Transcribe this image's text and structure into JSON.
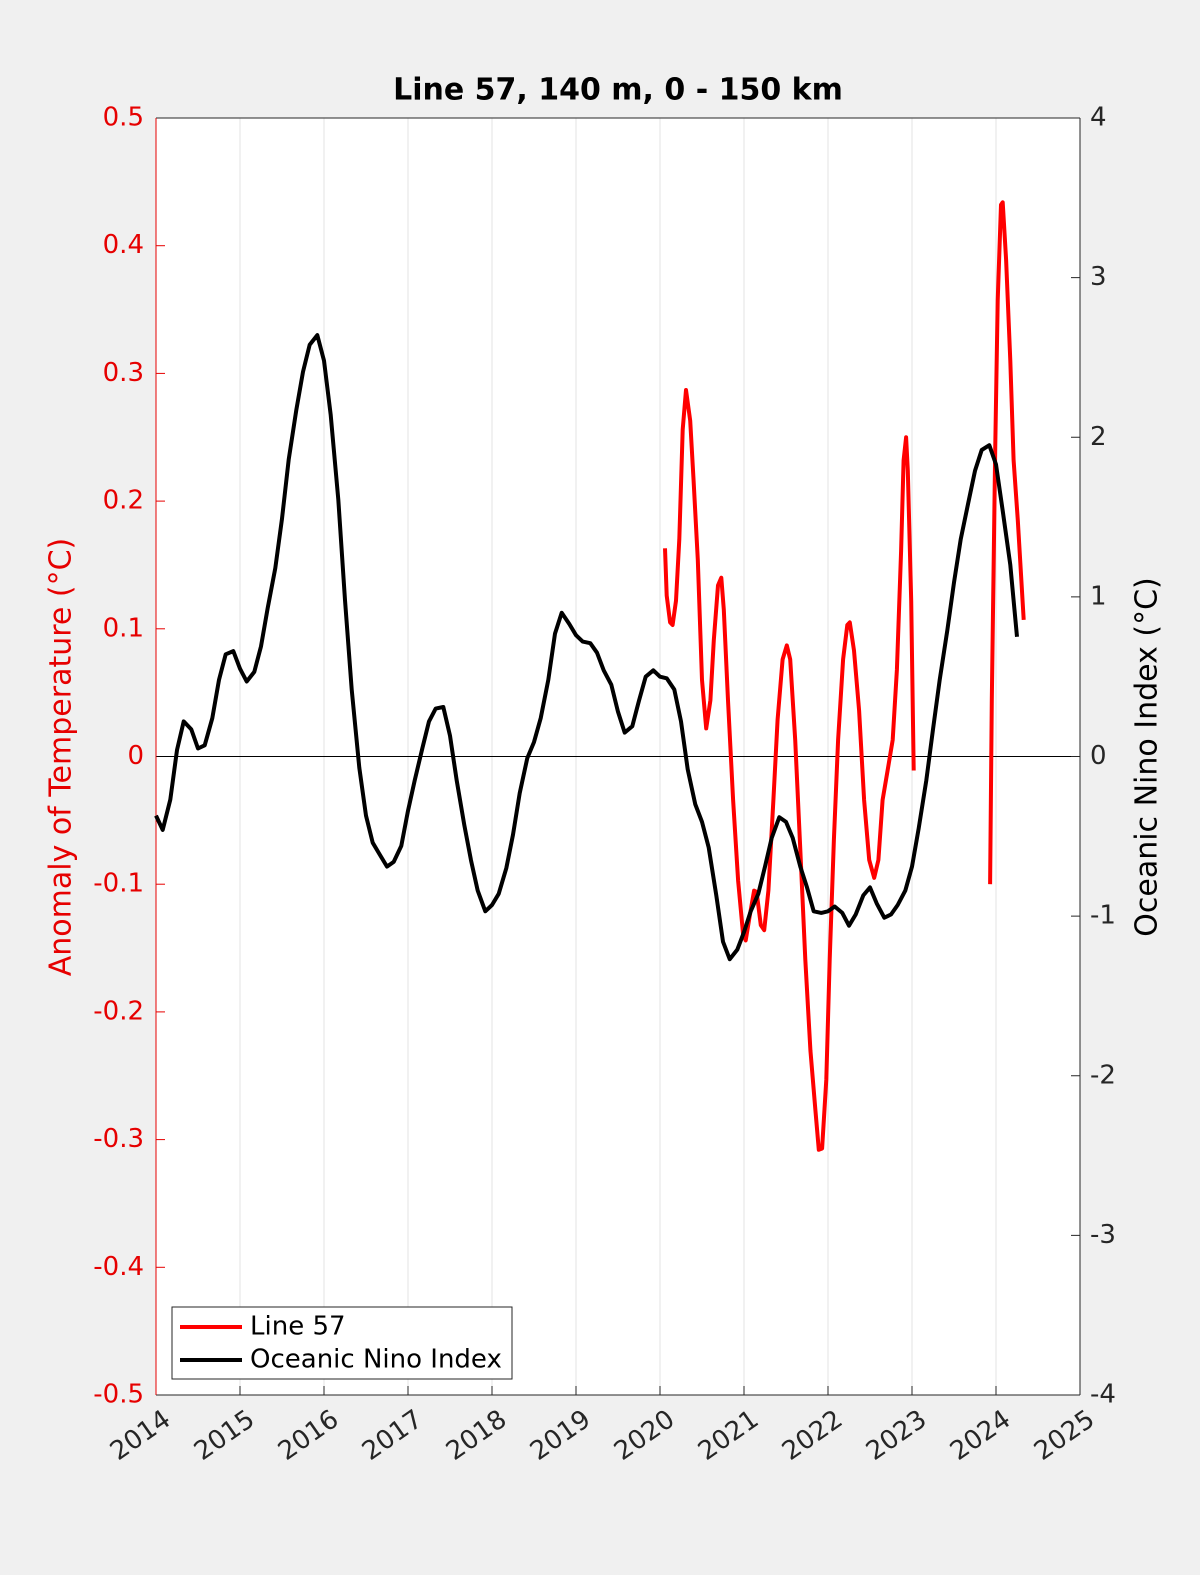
{
  "chart_data": {
    "type": "line",
    "title": "Line 57, 140 m, 0 - 150 km",
    "y_label": "Anomaly of Temperature (°C)",
    "y2_label": "Oceanic Nino Index (°C)",
    "xlim": [
      2014,
      2025
    ],
    "xticks": [
      2014,
      2015,
      2016,
      2017,
      2018,
      2019,
      2020,
      2021,
      2022,
      2023,
      2024,
      2025
    ],
    "ylim": [
      -0.5,
      0.5
    ],
    "yticks": [
      -0.5,
      -0.4,
      -0.3,
      -0.2,
      -0.1,
      0,
      0.1,
      0.2,
      0.3,
      0.4,
      0.5
    ],
    "y2lim": [
      -4,
      4
    ],
    "y2ticks": [
      -4,
      -3,
      -2,
      -1,
      0,
      1,
      2,
      3,
      4
    ],
    "grid": true,
    "legend": "lower left",
    "series": [
      {
        "name": "Line 57",
        "color": "#ff0000",
        "axis": "y",
        "x": [
          2020.06,
          2020.08,
          2020.12,
          2020.15,
          2020.19,
          2020.23,
          2020.27,
          2020.31,
          2020.36,
          2020.4,
          2020.45,
          2020.5,
          2020.55,
          2020.6,
          2020.64,
          2020.69,
          2020.73,
          2020.76,
          2020.81,
          2020.87,
          2020.93,
          2020.99,
          2021.02,
          2021.07,
          2021.12,
          2021.15,
          2021.2,
          2021.24,
          2021.29,
          2021.35,
          2021.4,
          2021.46,
          2021.51,
          2021.55,
          2021.61,
          2021.67,
          2021.73,
          2021.79,
          2021.85,
          2021.89,
          2021.93,
          2021.98,
          2022.02,
          2022.07,
          2022.12,
          2022.18,
          2022.23,
          2022.26,
          2022.31,
          2022.37,
          2022.43,
          2022.49,
          2022.55,
          2022.6,
          2022.65,
          2022.71,
          2022.77,
          2022.82,
          2022.87,
          2022.9,
          2022.93,
          2022.95,
          2022.99,
          2023.02,
          2023.5,
          2023.93,
          2023.95,
          2023.99,
          2024.02,
          2024.06,
          2024.08,
          2024.12,
          2024.17,
          2024.21,
          2024.26,
          2024.33
        ],
        "values": [
          0.163,
          0.126,
          0.105,
          0.103,
          0.122,
          0.17,
          0.256,
          0.287,
          0.263,
          0.216,
          0.154,
          0.06,
          0.022,
          0.044,
          0.091,
          0.134,
          0.14,
          0.115,
          0.044,
          -0.034,
          -0.097,
          -0.14,
          -0.144,
          -0.124,
          -0.105,
          -0.106,
          -0.132,
          -0.136,
          -0.105,
          -0.034,
          0.029,
          0.076,
          0.087,
          0.076,
          0.013,
          -0.073,
          -0.159,
          -0.23,
          -0.277,
          -0.308,
          -0.307,
          -0.253,
          -0.159,
          -0.065,
          0.013,
          0.076,
          0.103,
          0.105,
          0.083,
          0.036,
          -0.034,
          -0.081,
          -0.095,
          -0.081,
          -0.034,
          -0.011,
          0.013,
          0.068,
          0.161,
          0.232,
          0.25,
          0.224,
          0.122,
          -0.011,
          null,
          -0.1,
          0.044,
          0.24,
          0.357,
          0.432,
          0.434,
          0.389,
          0.31,
          0.232,
          0.185,
          0.107
        ]
      },
      {
        "name": "Oceanic Nino Index",
        "color": "#000000",
        "axis": "y2",
        "x": [
          2014,
          2014.08,
          2014.17,
          2014.25,
          2014.33,
          2014.42,
          2014.5,
          2014.58,
          2014.67,
          2014.75,
          2014.83,
          2014.92,
          2015,
          2015.08,
          2015.17,
          2015.25,
          2015.33,
          2015.42,
          2015.5,
          2015.58,
          2015.67,
          2015.75,
          2015.83,
          2015.92,
          2016,
          2016.08,
          2016.17,
          2016.25,
          2016.33,
          2016.42,
          2016.5,
          2016.58,
          2016.67,
          2016.75,
          2016.83,
          2016.92,
          2017,
          2017.08,
          2017.17,
          2017.25,
          2017.33,
          2017.42,
          2017.5,
          2017.58,
          2017.67,
          2017.75,
          2017.83,
          2017.92,
          2018,
          2018.08,
          2018.17,
          2018.25,
          2018.33,
          2018.42,
          2018.5,
          2018.58,
          2018.67,
          2018.75,
          2018.83,
          2018.92,
          2019,
          2019.08,
          2019.17,
          2019.25,
          2019.33,
          2019.42,
          2019.5,
          2019.58,
          2019.67,
          2019.75,
          2019.83,
          2019.92,
          2020,
          2020.08,
          2020.17,
          2020.25,
          2020.33,
          2020.42,
          2020.5,
          2020.58,
          2020.67,
          2020.75,
          2020.83,
          2020.92,
          2021,
          2021.08,
          2021.17,
          2021.25,
          2021.33,
          2021.42,
          2021.5,
          2021.58,
          2021.67,
          2021.75,
          2021.83,
          2021.92,
          2022,
          2022.08,
          2022.17,
          2022.25,
          2022.33,
          2022.42,
          2022.5,
          2022.58,
          2022.67,
          2022.75,
          2022.83,
          2022.92,
          2023,
          2023.08,
          2023.17,
          2023.25,
          2023.33,
          2023.42,
          2023.5,
          2023.58,
          2023.67,
          2023.75,
          2023.83,
          2023.92,
          2024,
          2024.08,
          2024.17,
          2024.25
        ],
        "values": [
          -0.37,
          -0.46,
          -0.27,
          0.04,
          0.22,
          0.17,
          0.05,
          0.07,
          0.24,
          0.48,
          0.64,
          0.66,
          0.55,
          0.47,
          0.53,
          0.69,
          0.93,
          1.18,
          1.49,
          1.86,
          2.17,
          2.41,
          2.58,
          2.64,
          2.48,
          2.14,
          1.61,
          0.98,
          0.42,
          -0.07,
          -0.37,
          -0.54,
          -0.62,
          -0.69,
          -0.66,
          -0.56,
          -0.34,
          -0.15,
          0.05,
          0.22,
          0.3,
          0.31,
          0.13,
          -0.15,
          -0.43,
          -0.65,
          -0.84,
          -0.97,
          -0.93,
          -0.86,
          -0.7,
          -0.49,
          -0.23,
          -0.01,
          0.09,
          0.24,
          0.48,
          0.77,
          0.9,
          0.83,
          0.76,
          0.72,
          0.71,
          0.65,
          0.54,
          0.45,
          0.28,
          0.15,
          0.19,
          0.35,
          0.5,
          0.54,
          0.5,
          0.49,
          0.42,
          0.22,
          -0.08,
          -0.3,
          -0.41,
          -0.57,
          -0.87,
          -1.16,
          -1.27,
          -1.21,
          -1.1,
          -0.97,
          -0.86,
          -0.69,
          -0.51,
          -0.38,
          -0.41,
          -0.51,
          -0.69,
          -0.82,
          -0.97,
          -0.98,
          -0.97,
          -0.94,
          -0.98,
          -1.06,
          -0.99,
          -0.87,
          -0.82,
          -0.92,
          -1.01,
          -0.99,
          -0.93,
          -0.84,
          -0.69,
          -0.45,
          -0.15,
          0.17,
          0.48,
          0.79,
          1.09,
          1.36,
          1.59,
          1.79,
          1.92,
          1.95,
          1.83,
          1.54,
          1.2,
          0.75
        ]
      }
    ]
  }
}
